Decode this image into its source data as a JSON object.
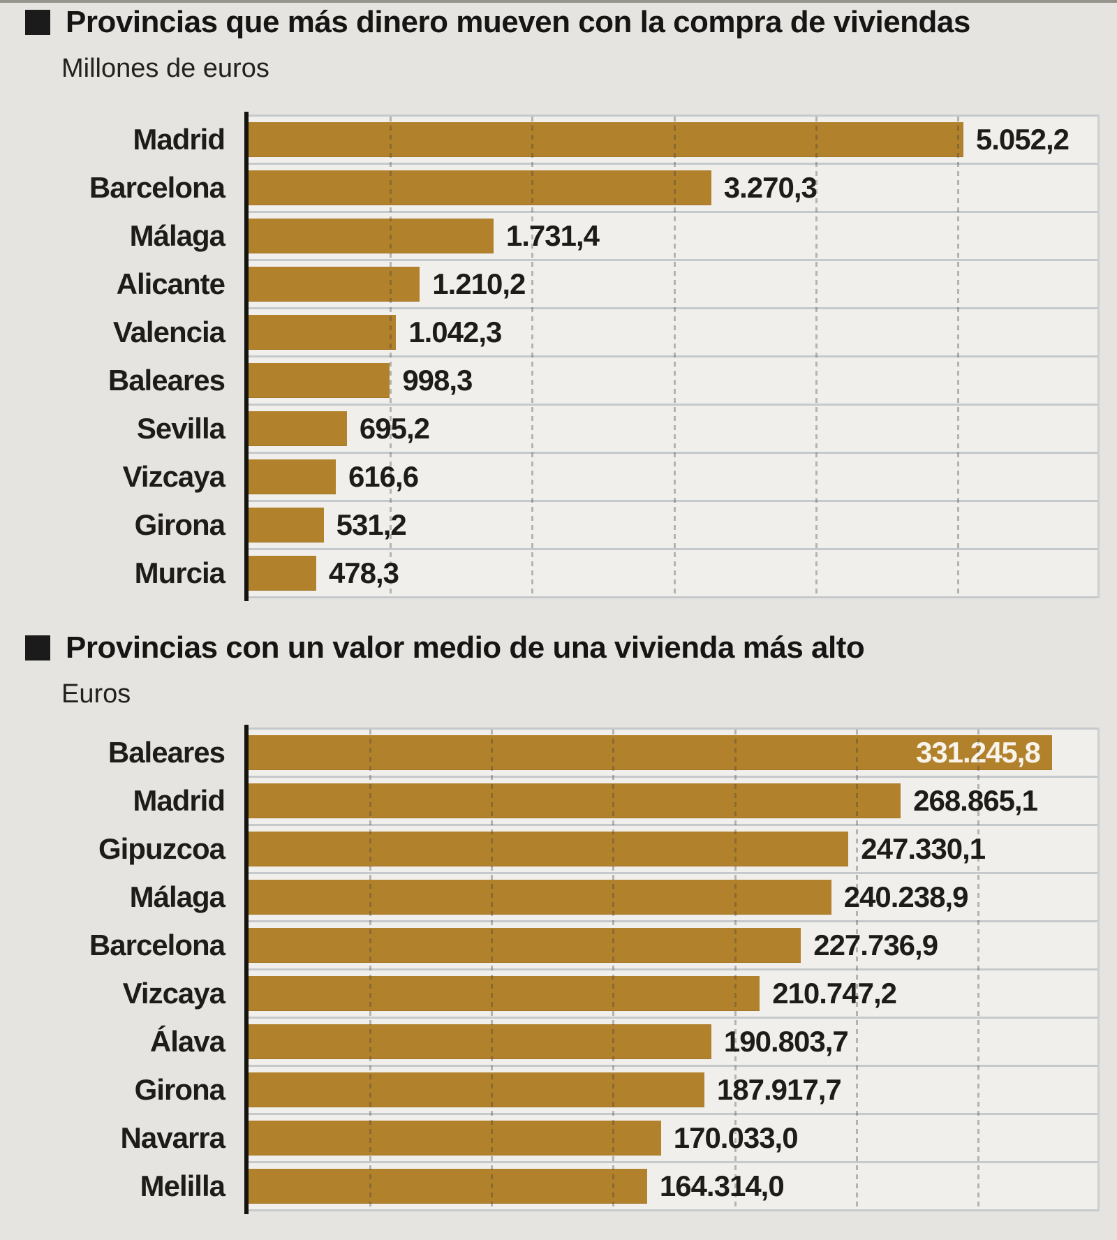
{
  "page": {
    "background_color": "#e5e4e1"
  },
  "colors": {
    "bar": "#b2812c",
    "background": "#e5e4e1",
    "track": "#f0efec",
    "divider": "#c6c9cb",
    "text": "#1d1c19",
    "title": "#161513",
    "axis": "#15130e",
    "value_inside_text": "#f8f4ec"
  },
  "chart_data": [
    {
      "type": "bar",
      "orientation": "horizontal",
      "title": "Provincias que más dinero mueven con la compra de viviendas",
      "unit_label": "Millones de euros",
      "categories": [
        "Madrid",
        "Barcelona",
        "Málaga",
        "Alicante",
        "Valencia",
        "Baleares",
        "Sevilla",
        "Vizcaya",
        "Girona",
        "Murcia"
      ],
      "values": [
        5052.2,
        3270.3,
        1731.4,
        1210.2,
        1042.3,
        998.3,
        695.2,
        616.6,
        531.2,
        478.3
      ],
      "value_labels": [
        "5.052,2",
        "3.270,3",
        "1.731,4",
        "1.210,2",
        "1.042,3",
        "998,3",
        "695,2",
        "616,6",
        "531,2",
        "478,3"
      ],
      "xlim": [
        0,
        6000
      ],
      "grid_step": 1000,
      "grid": true,
      "legend": "none",
      "value_label_position": "outside-right"
    },
    {
      "type": "bar",
      "orientation": "horizontal",
      "title": "Provincias con un valor medio de una vivienda más alto",
      "unit_label": "Euros",
      "categories": [
        "Baleares",
        "Madrid",
        "Gipuzcoa",
        "Málaga",
        "Barcelona",
        "Vizcaya",
        "Álava",
        "Girona",
        "Navarra",
        "Melilla"
      ],
      "values": [
        331245.8,
        268865.1,
        247330.1,
        240238.9,
        227736.9,
        210747.2,
        190803.7,
        187917.7,
        170033.0,
        164314.0
      ],
      "value_labels": [
        "331.245,8",
        "268.865,1",
        "247.330,1",
        "240.238,9",
        "227.736,9",
        "210.747,2",
        "190.803,7",
        "187.917,7",
        "170.033,0",
        "164.314,0"
      ],
      "xlim": [
        0,
        350000
      ],
      "grid_step": 50000,
      "grid": true,
      "legend": "none",
      "value_label_position": "outside-right",
      "value_inside_rows": [
        0
      ]
    }
  ]
}
